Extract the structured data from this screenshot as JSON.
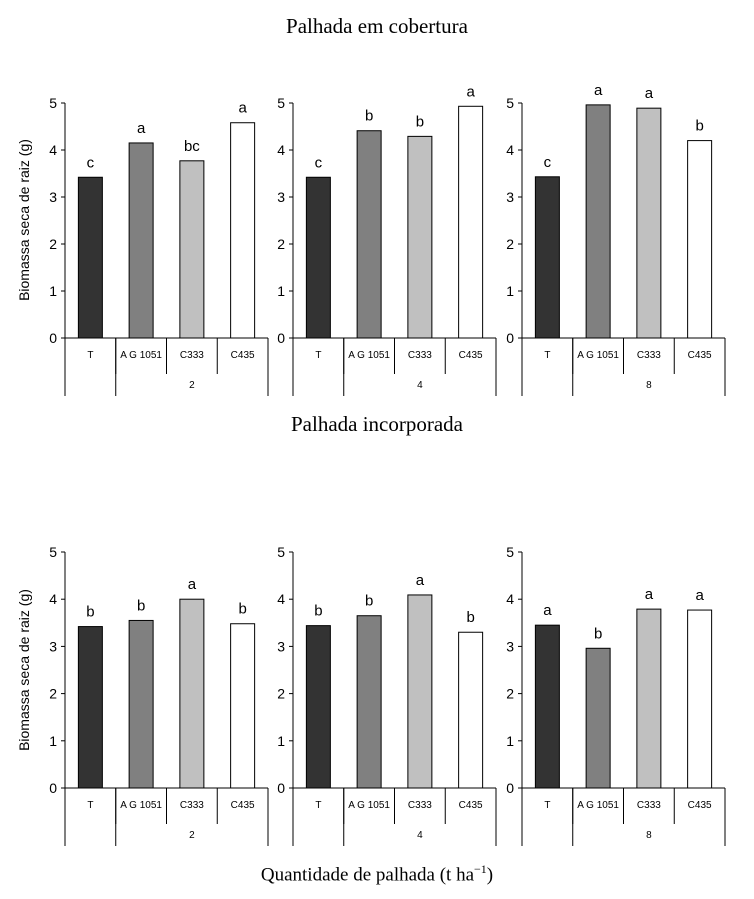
{
  "titles": {
    "top": "Palhada em cobertura",
    "bottom": "Palhada incorporada"
  },
  "ylabel": "Biomassa seca de raiz (g)",
  "xlabel": {
    "text": "Quantidade de palhada (t ha",
    "sup": "−1",
    "close": ")"
  },
  "colors": {
    "T": "#333333",
    "AG 1051": "#808080",
    "C333": "#c0c0c0",
    "C435": "#ffffff"
  },
  "chart_data": [
    {
      "type": "bar",
      "panel": "Palhada em cobertura",
      "group": "2",
      "categories": [
        "T",
        "A G 1051",
        "C333",
        "C435"
      ],
      "values": [
        3.42,
        4.15,
        3.77,
        4.58
      ],
      "letters": [
        "c",
        "a",
        "bc",
        "a"
      ],
      "ylim": [
        0,
        5
      ],
      "yticks": [
        "0",
        "1",
        "2",
        "3",
        "4",
        "5"
      ]
    },
    {
      "type": "bar",
      "panel": "Palhada em cobertura",
      "group": "4",
      "categories": [
        "T",
        "A G 1051",
        "C333",
        "C435"
      ],
      "values": [
        3.42,
        4.41,
        4.29,
        4.93
      ],
      "letters": [
        "c",
        "b",
        "b",
        "a"
      ],
      "ylim": [
        0,
        5
      ],
      "yticks": [
        "0",
        "1",
        "2",
        "3",
        "4",
        "5"
      ]
    },
    {
      "type": "bar",
      "panel": "Palhada em cobertura",
      "group": "8",
      "categories": [
        "T",
        "A G 1051",
        "C333",
        "C435"
      ],
      "values": [
        3.43,
        4.96,
        4.89,
        4.2
      ],
      "letters": [
        "c",
        "a",
        "a",
        "b"
      ],
      "ylim": [
        0,
        5
      ],
      "yticks": [
        "0",
        "1",
        "2",
        "3",
        "4",
        "5"
      ]
    },
    {
      "type": "bar",
      "panel": "Palhada incorporada",
      "group": "2",
      "categories": [
        "T",
        "A G 1051",
        "C333",
        "C435"
      ],
      "values": [
        3.42,
        3.55,
        4.0,
        3.48
      ],
      "letters": [
        "b",
        "b",
        "a",
        "b"
      ],
      "ylim": [
        0,
        5
      ],
      "yticks": [
        "0",
        "1",
        "2",
        "3",
        "4",
        "5"
      ]
    },
    {
      "type": "bar",
      "panel": "Palhada incorporada",
      "group": "4",
      "categories": [
        "T",
        "A G 1051",
        "C333",
        "C435"
      ],
      "values": [
        3.44,
        3.65,
        4.09,
        3.3
      ],
      "letters": [
        "b",
        "b",
        "a",
        "b"
      ],
      "ylim": [
        0,
        5
      ],
      "yticks": [
        "0",
        "1",
        "2",
        "3",
        "4",
        "5"
      ]
    },
    {
      "type": "bar",
      "panel": "Palhada incorporada",
      "group": "8",
      "categories": [
        "T",
        "A G 1051",
        "C333",
        "C435"
      ],
      "values": [
        3.45,
        2.96,
        3.79,
        3.77
      ],
      "letters": [
        "a",
        "b",
        "a",
        "a"
      ],
      "ylim": [
        0,
        5
      ],
      "yticks": [
        "0",
        "1",
        "2",
        "3",
        "4",
        "5"
      ]
    }
  ]
}
